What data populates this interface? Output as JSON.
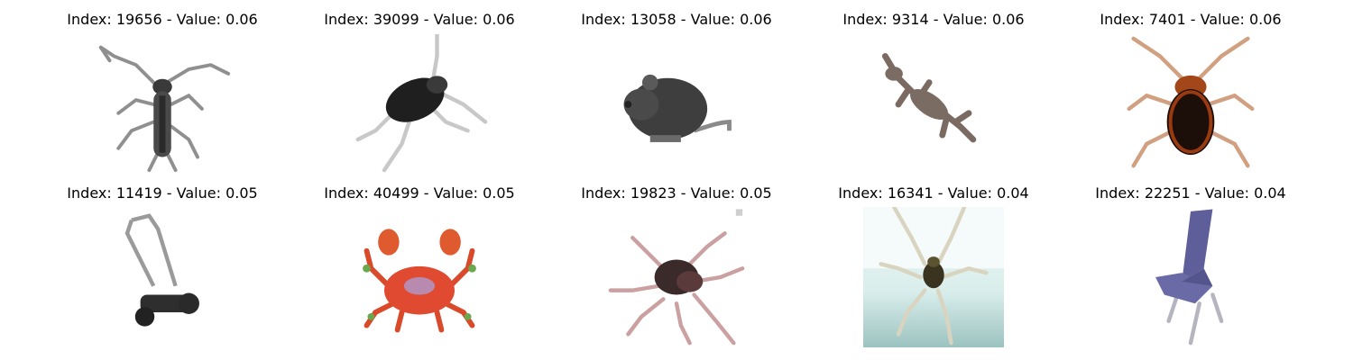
{
  "grid": {
    "tiles": [
      {
        "title": "Index: 19656 - Value: 0.06",
        "image_semantic": "longhorn-beetle"
      },
      {
        "title": "Index: 39099 - Value: 0.06",
        "image_semantic": "cricket"
      },
      {
        "title": "Index: 13058 - Value: 0.06",
        "image_semantic": "mouse"
      },
      {
        "title": "Index: 9314 - Value: 0.06",
        "image_semantic": "lizard"
      },
      {
        "title": "Index: 7401 - Value: 0.06",
        "image_semantic": "cockroach"
      },
      {
        "title": "Index: 11419 - Value: 0.05",
        "image_semantic": "lawn-mower"
      },
      {
        "title": "Index: 40499 - Value: 0.05",
        "image_semantic": "crab"
      },
      {
        "title": "Index: 19823 - Value: 0.05",
        "image_semantic": "spider"
      },
      {
        "title": "Index: 16341 - Value: 0.04",
        "image_semantic": "spider-on-glass"
      },
      {
        "title": "Index: 22251 - Value: 0.04",
        "image_semantic": "chair"
      }
    ]
  }
}
